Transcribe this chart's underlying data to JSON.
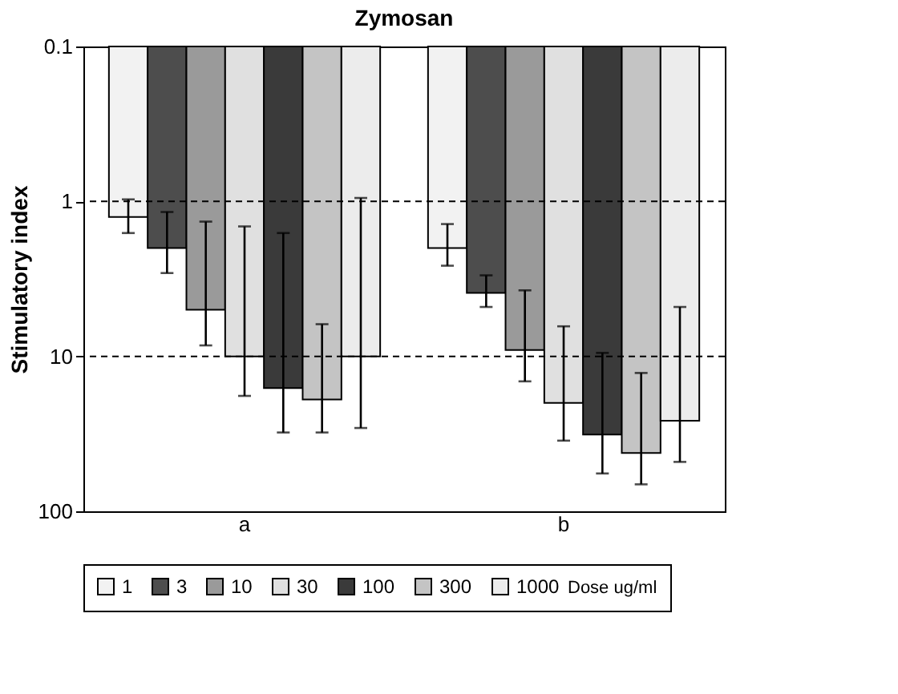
{
  "chart_data": {
    "type": "bar",
    "title": "Zymosan",
    "ylabel": "Stimulatory index",
    "legend_title": "Dose ug/ml",
    "categories": [
      "a",
      "b"
    ],
    "series": [
      {
        "name": "1",
        "color": "#f2f2f2",
        "values": [
          1.26,
          2.0
        ],
        "errors": [
          [
            0.97,
            1.6
          ],
          [
            1.4,
            2.6
          ]
        ]
      },
      {
        "name": "3",
        "color": "#4d4d4d",
        "values": [
          2.0,
          3.9
        ],
        "errors": [
          [
            1.17,
            2.9
          ],
          [
            3.0,
            4.8
          ]
        ]
      },
      {
        "name": "10",
        "color": "#9a9a9a",
        "values": [
          5.0,
          9.1
        ],
        "errors": [
          [
            1.35,
            8.5
          ],
          [
            3.75,
            14.5
          ]
        ]
      },
      {
        "name": "30",
        "color": "#e0e0e0",
        "values": [
          10,
          20
        ],
        "errors": [
          [
            1.45,
            18
          ],
          [
            6.4,
            35
          ]
        ]
      },
      {
        "name": "100",
        "color": "#3a3a3a",
        "values": [
          16,
          32
        ],
        "errors": [
          [
            1.6,
            31
          ],
          [
            9.5,
            57
          ]
        ]
      },
      {
        "name": "300",
        "color": "#c4c4c4",
        "values": [
          19,
          42
        ],
        "errors": [
          [
            6.2,
            31
          ],
          [
            12.8,
            67
          ]
        ]
      },
      {
        "name": "1000",
        "color": "#ececec",
        "values": [
          10,
          26
        ],
        "errors": [
          [
            0.95,
            29
          ],
          [
            4.8,
            48
          ]
        ]
      }
    ],
    "ylim": [
      100,
      0.1
    ],
    "yticks": [
      0.1,
      1,
      10,
      100
    ],
    "log": true,
    "grid": false,
    "legend": "bottom",
    "ref_lines": [
      {
        "axis": "y",
        "value": 1,
        "line_style": "dashed"
      },
      {
        "axis": "y",
        "value": 10,
        "line_style": "dashed"
      }
    ]
  }
}
